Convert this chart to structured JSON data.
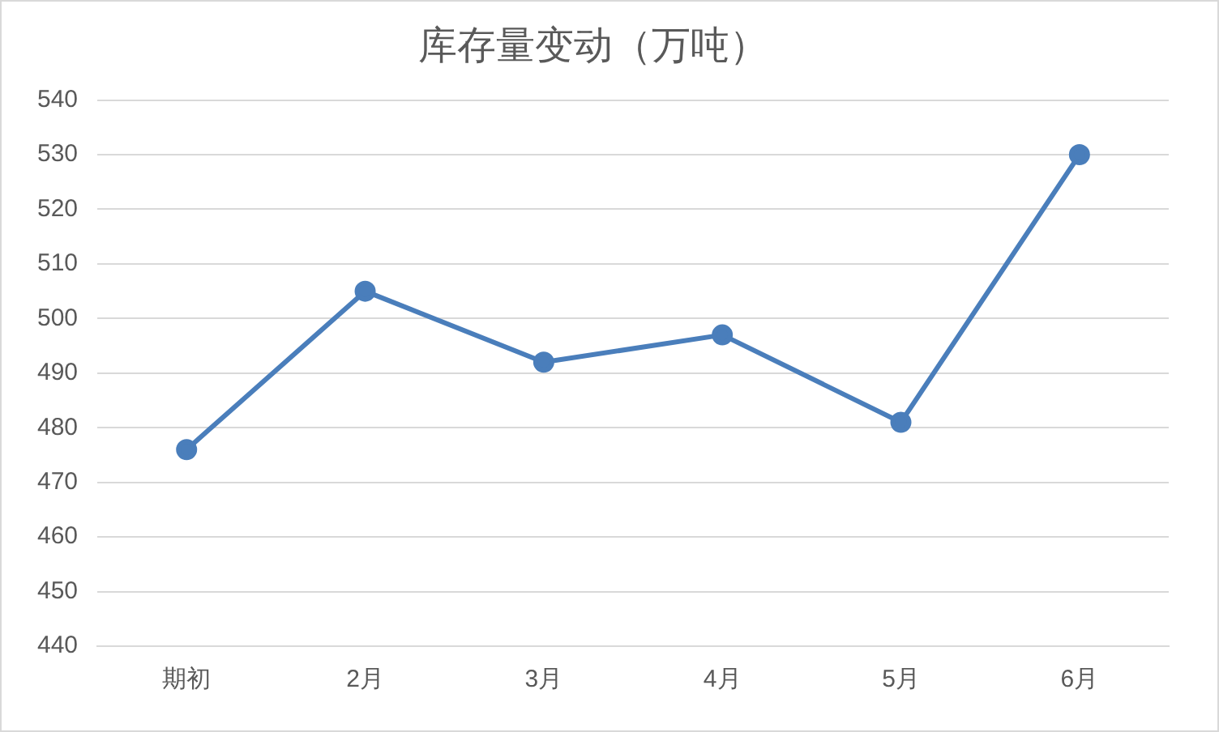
{
  "chart_data": {
    "type": "line",
    "title": "库存量变动（万吨）",
    "categories": [
      "期初",
      "2月",
      "3月",
      "4月",
      "5月",
      "6月"
    ],
    "series": [
      {
        "color": "#4a7ebb",
        "values": [
          476,
          505,
          492,
          497,
          481,
          530
        ]
      }
    ],
    "ylim": [
      440,
      540
    ],
    "yticks": [
      440,
      450,
      460,
      470,
      480,
      490,
      500,
      510,
      520,
      530,
      540
    ],
    "grid": "y",
    "legend": false,
    "marker": "circle",
    "line_style": "solid"
  }
}
